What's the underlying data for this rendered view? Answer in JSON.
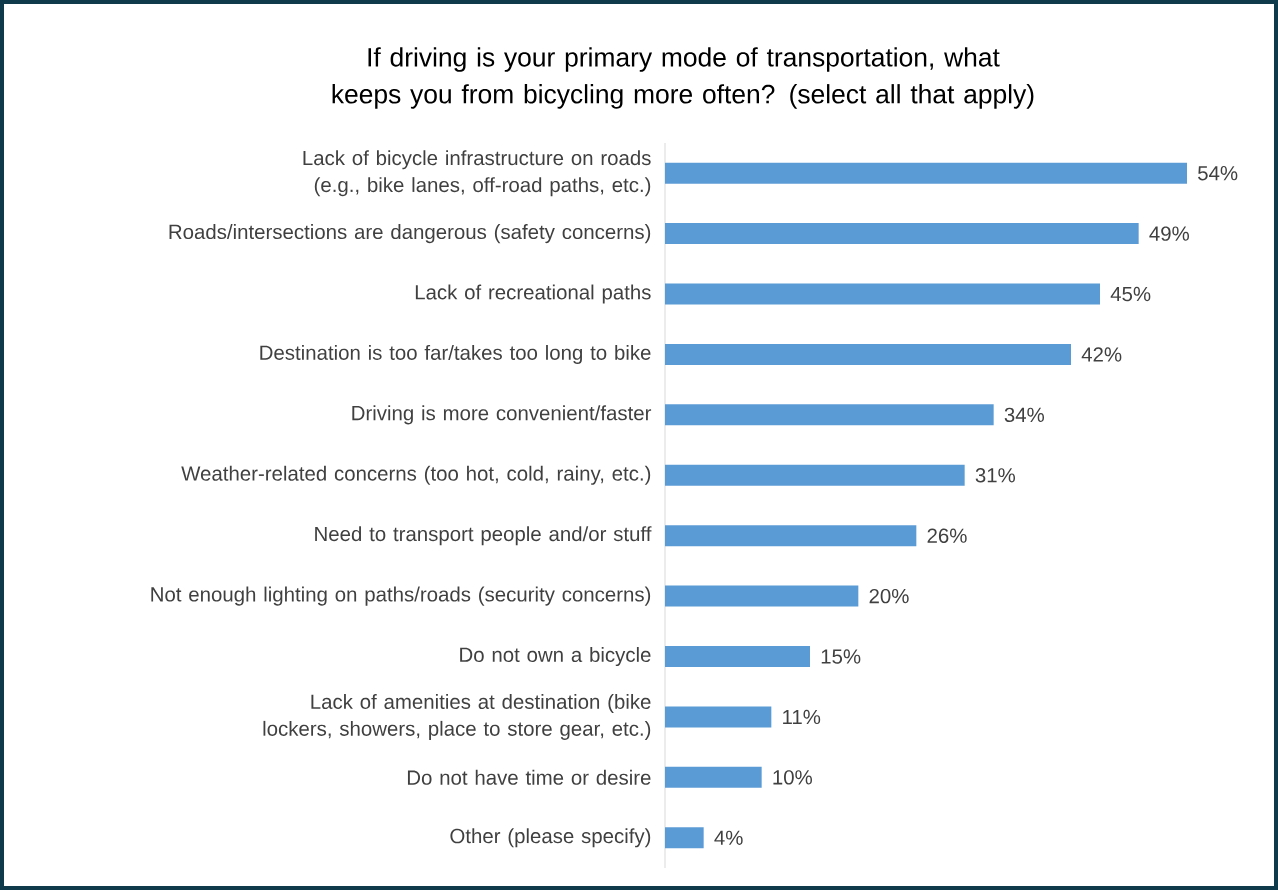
{
  "chart_data": {
    "type": "bar",
    "orientation": "horizontal",
    "title": "If driving is your primary mode of transportation, what keeps you from bicycling more often? (select all that apply)",
    "categories": [
      "Lack of bicycle infrastructure on roads (e.g., bike lanes, off-road paths, etc.)",
      "Roads/intersections are dangerous (safety concerns)",
      "Lack of recreational paths",
      "Destination is too far/takes too long to bike",
      "Driving is more convenient/faster",
      "Weather-related concerns (too hot, cold, rainy, etc.)",
      "Need to transport people and/or stuff",
      "Not enough lighting on paths/roads (security concerns)",
      "Do not own a bicycle",
      "Lack of amenities at destination (bike lockers, showers, place to store gear, etc.)",
      "Do not have time or desire",
      "Other (please specify)"
    ],
    "values": [
      54,
      49,
      45,
      42,
      34,
      31,
      26,
      20,
      15,
      11,
      10,
      4
    ],
    "value_labels": [
      "54%",
      "49%",
      "45%",
      "42%",
      "34%",
      "31%",
      "26%",
      "20%",
      "15%",
      "11%",
      "10%",
      "4%"
    ],
    "color": "#5b9bd5"
  }
}
